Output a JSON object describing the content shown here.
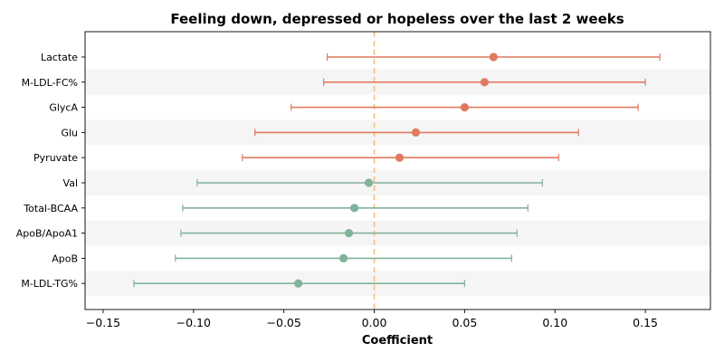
{
  "chart_data": {
    "type": "scatter",
    "subtype": "forest-plot",
    "title": "Feeling down, depressed or hopeless over the last 2 weeks",
    "xlabel": "Coefficient",
    "ylabel": "",
    "xlim": [
      -0.16,
      0.186
    ],
    "xticks": [
      -0.15,
      -0.1,
      -0.05,
      0.0,
      0.05,
      0.1,
      0.15
    ],
    "xtick_labels": [
      "−0.15",
      "−0.10",
      "−0.05",
      "0.00",
      "0.05",
      "0.10",
      "0.15"
    ],
    "reference_line": {
      "x": 0,
      "style": "dashed",
      "color": "#f5c07a"
    },
    "grid": false,
    "banded_rows": true,
    "colors": {
      "positive": "#e07a5f",
      "negative": "#81b29a",
      "band": "#f5f5f5"
    },
    "rows": [
      {
        "label": "Lactate",
        "coef": 0.066,
        "lower": -0.026,
        "upper": 0.158,
        "color": "#e07a5f"
      },
      {
        "label": "M-LDL-FC%",
        "coef": 0.061,
        "lower": -0.028,
        "upper": 0.15,
        "color": "#e07a5f"
      },
      {
        "label": "GlycA",
        "coef": 0.05,
        "lower": -0.046,
        "upper": 0.146,
        "color": "#e07a5f"
      },
      {
        "label": "Glu",
        "coef": 0.023,
        "lower": -0.066,
        "upper": 0.113,
        "color": "#e07a5f"
      },
      {
        "label": "Pyruvate",
        "coef": 0.014,
        "lower": -0.073,
        "upper": 0.102,
        "color": "#e07a5f"
      },
      {
        "label": "Val",
        "coef": -0.003,
        "lower": -0.098,
        "upper": 0.093,
        "color": "#81b29a"
      },
      {
        "label": "Total-BCAA",
        "coef": -0.011,
        "lower": -0.106,
        "upper": 0.085,
        "color": "#81b29a"
      },
      {
        "label": "ApoB/ApoA1",
        "coef": -0.014,
        "lower": -0.107,
        "upper": 0.079,
        "color": "#81b29a"
      },
      {
        "label": "ApoB",
        "coef": -0.017,
        "lower": -0.11,
        "upper": 0.076,
        "color": "#81b29a"
      },
      {
        "label": "M-LDL-TG%",
        "coef": -0.042,
        "lower": -0.133,
        "upper": 0.05,
        "color": "#81b29a"
      }
    ]
  }
}
